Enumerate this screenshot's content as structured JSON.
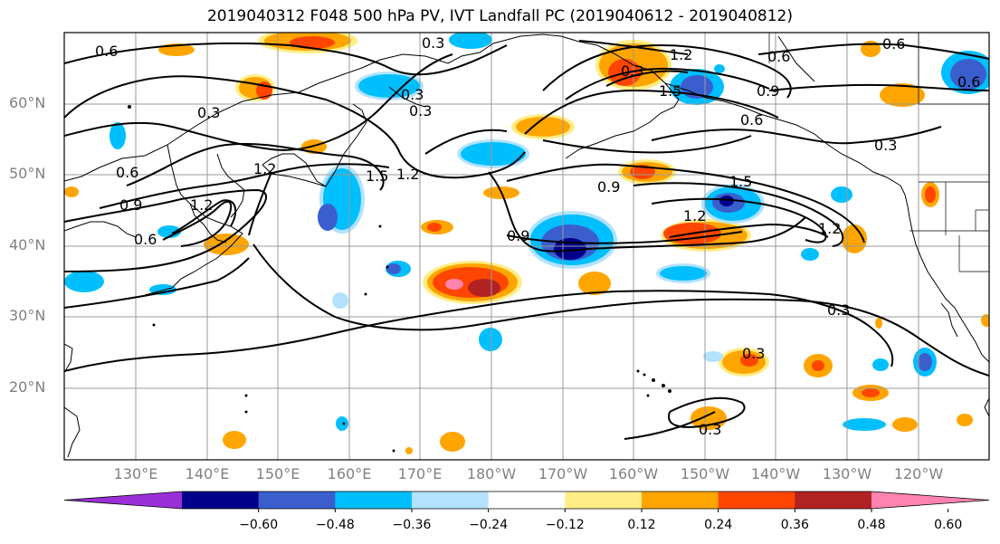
{
  "title": "2019040312 F048 500 hPa PV, IVT Landfall PC (2019040612 - 2019040812)",
  "lat_labels": [
    "60°N",
    "50°N",
    "40°N",
    "30°N",
    "20°N"
  ],
  "lon_labels": [
    "130°E",
    "140°E",
    "150°E",
    "160°E",
    "170°E",
    "180°W",
    "170°W",
    "160°W",
    "150°W",
    "140°W",
    "130°W",
    "120°W"
  ],
  "contour_labels": [
    "0.6",
    "0.3",
    "0.3",
    "0.3",
    "1.2",
    "0.6",
    "0.9",
    "0.6",
    "0.3",
    "1.2",
    "1.5",
    "1.2",
    "0.9",
    "1.2",
    "1.5",
    "1.2",
    "1.5",
    "0.9",
    "0.9",
    "0.6",
    "1.2",
    "0.3",
    "0.3",
    "0.3"
  ],
  "colorbar": {
    "colors": [
      "#9b30d9",
      "#00008b",
      "#3a5fcd",
      "#00bfff",
      "#b2e2ff",
      "#ffffff",
      "#ffed85",
      "#ffa500",
      "#ff4500",
      "#b22222",
      "#ff83b0"
    ],
    "labels": [
      "−0.60",
      "−0.48",
      "−0.36",
      "−0.24",
      "−0.12",
      "0.12",
      "0.24",
      "0.36",
      "0.48",
      "0.60"
    ]
  }
}
